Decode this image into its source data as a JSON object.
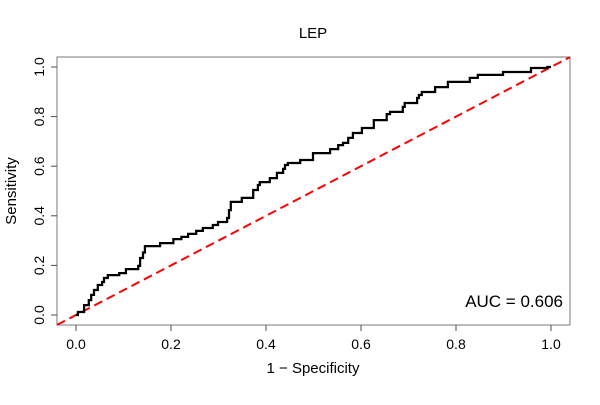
{
  "chart_data": {
    "type": "line",
    "title": "LEP",
    "xlabel": "1 − Specificity",
    "ylabel": "Sensitivity",
    "annotation": "AUC = 0.606",
    "auc_value": 0.606,
    "xlim": [
      0.0,
      1.0
    ],
    "ylim": [
      0.0,
      1.0
    ],
    "grid": false,
    "legend": null,
    "x_ticks": {
      "values": [
        0.0,
        0.2,
        0.4,
        0.6,
        0.8,
        1.0
      ],
      "labels": [
        "0.0",
        "0.2",
        "0.4",
        "0.6",
        "0.8",
        "1.0"
      ]
    },
    "y_ticks": {
      "values": [
        0.0,
        0.2,
        0.4,
        0.6,
        0.8,
        1.0
      ],
      "labels": [
        "0.0",
        "0.2",
        "0.4",
        "0.6",
        "0.8",
        "1.0"
      ]
    },
    "series": [
      {
        "name": "ROC curve",
        "style": "solid",
        "color": "#000000",
        "points": [
          [
            0.0,
            0.0
          ],
          [
            0.004,
            0.0
          ],
          [
            0.004,
            0.012
          ],
          [
            0.017,
            0.012
          ],
          [
            0.017,
            0.04
          ],
          [
            0.027,
            0.04
          ],
          [
            0.027,
            0.06
          ],
          [
            0.032,
            0.06
          ],
          [
            0.032,
            0.081
          ],
          [
            0.038,
            0.081
          ],
          [
            0.038,
            0.101
          ],
          [
            0.046,
            0.101
          ],
          [
            0.046,
            0.121
          ],
          [
            0.055,
            0.121
          ],
          [
            0.055,
            0.133
          ],
          [
            0.059,
            0.133
          ],
          [
            0.059,
            0.149
          ],
          [
            0.067,
            0.149
          ],
          [
            0.067,
            0.161
          ],
          [
            0.091,
            0.161
          ],
          [
            0.091,
            0.169
          ],
          [
            0.105,
            0.169
          ],
          [
            0.105,
            0.185
          ],
          [
            0.131,
            0.185
          ],
          [
            0.131,
            0.198
          ],
          [
            0.135,
            0.198
          ],
          [
            0.135,
            0.23
          ],
          [
            0.141,
            0.23
          ],
          [
            0.141,
            0.252
          ],
          [
            0.145,
            0.252
          ],
          [
            0.145,
            0.278
          ],
          [
            0.177,
            0.278
          ],
          [
            0.177,
            0.29
          ],
          [
            0.205,
            0.29
          ],
          [
            0.205,
            0.306
          ],
          [
            0.222,
            0.306
          ],
          [
            0.222,
            0.315
          ],
          [
            0.236,
            0.315
          ],
          [
            0.236,
            0.327
          ],
          [
            0.253,
            0.327
          ],
          [
            0.253,
            0.339
          ],
          [
            0.267,
            0.339
          ],
          [
            0.267,
            0.351
          ],
          [
            0.288,
            0.351
          ],
          [
            0.288,
            0.363
          ],
          [
            0.299,
            0.363
          ],
          [
            0.299,
            0.375
          ],
          [
            0.318,
            0.375
          ],
          [
            0.318,
            0.391
          ],
          [
            0.322,
            0.391
          ],
          [
            0.322,
            0.423
          ],
          [
            0.326,
            0.423
          ],
          [
            0.326,
            0.456
          ],
          [
            0.349,
            0.456
          ],
          [
            0.349,
            0.472
          ],
          [
            0.373,
            0.472
          ],
          [
            0.373,
            0.504
          ],
          [
            0.383,
            0.504
          ],
          [
            0.383,
            0.524
          ],
          [
            0.387,
            0.524
          ],
          [
            0.387,
            0.536
          ],
          [
            0.408,
            0.536
          ],
          [
            0.408,
            0.552
          ],
          [
            0.423,
            0.552
          ],
          [
            0.423,
            0.573
          ],
          [
            0.436,
            0.573
          ],
          [
            0.436,
            0.589
          ],
          [
            0.44,
            0.589
          ],
          [
            0.44,
            0.605
          ],
          [
            0.446,
            0.605
          ],
          [
            0.446,
            0.613
          ],
          [
            0.472,
            0.613
          ],
          [
            0.472,
            0.625
          ],
          [
            0.499,
            0.625
          ],
          [
            0.499,
            0.653
          ],
          [
            0.535,
            0.653
          ],
          [
            0.535,
            0.669
          ],
          [
            0.552,
            0.669
          ],
          [
            0.552,
            0.685
          ],
          [
            0.562,
            0.685
          ],
          [
            0.562,
            0.694
          ],
          [
            0.573,
            0.694
          ],
          [
            0.573,
            0.714
          ],
          [
            0.583,
            0.714
          ],
          [
            0.583,
            0.734
          ],
          [
            0.602,
            0.734
          ],
          [
            0.602,
            0.754
          ],
          [
            0.627,
            0.754
          ],
          [
            0.627,
            0.786
          ],
          [
            0.654,
            0.786
          ],
          [
            0.654,
            0.81
          ],
          [
            0.661,
            0.81
          ],
          [
            0.661,
            0.819
          ],
          [
            0.688,
            0.819
          ],
          [
            0.688,
            0.839
          ],
          [
            0.692,
            0.839
          ],
          [
            0.692,
            0.855
          ],
          [
            0.718,
            0.855
          ],
          [
            0.718,
            0.875
          ],
          [
            0.722,
            0.875
          ],
          [
            0.722,
            0.887
          ],
          [
            0.728,
            0.887
          ],
          [
            0.728,
            0.899
          ],
          [
            0.756,
            0.899
          ],
          [
            0.756,
            0.919
          ],
          [
            0.783,
            0.919
          ],
          [
            0.783,
            0.94
          ],
          [
            0.829,
            0.94
          ],
          [
            0.829,
            0.956
          ],
          [
            0.846,
            0.956
          ],
          [
            0.846,
            0.968
          ],
          [
            0.899,
            0.968
          ],
          [
            0.899,
            0.98
          ],
          [
            0.958,
            0.98
          ],
          [
            0.958,
            0.996
          ],
          [
            0.992,
            0.996
          ],
          [
            0.992,
            1.0
          ],
          [
            1.0,
            1.0
          ]
        ]
      },
      {
        "name": "chance diagonal",
        "style": "dashed",
        "color": "#ff0000",
        "points": [
          [
            0.0,
            0.0
          ],
          [
            1.0,
            1.0
          ]
        ]
      }
    ]
  },
  "colors": {
    "background": "#ffffff",
    "frame": "#7a7a7a",
    "tick": "#4d4d4d",
    "text": "#000000",
    "curve": "#000000",
    "reference": "#ff0000"
  }
}
